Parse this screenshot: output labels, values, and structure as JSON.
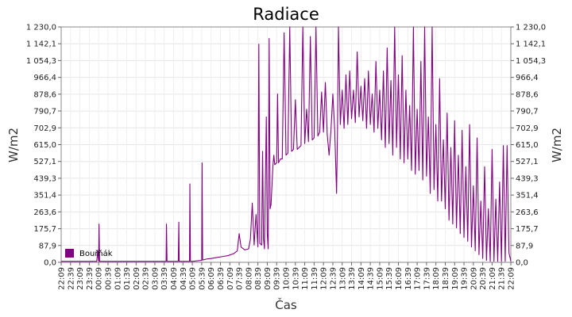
{
  "chart_data": {
    "type": "line",
    "title": "Radiace",
    "xlabel": "Čas",
    "ylabel": "W/m2",
    "ylabel_right": "W/m2",
    "ylim": [
      0,
      1230
    ],
    "y_ticks": [
      {
        "value": 0,
        "label": "0,0"
      },
      {
        "value": 87.9,
        "label": "87,9"
      },
      {
        "value": 175.7,
        "label": "175,7"
      },
      {
        "value": 263.6,
        "label": "263,6"
      },
      {
        "value": 351.4,
        "label": "351,4"
      },
      {
        "value": 439.3,
        "label": "439,3"
      },
      {
        "value": 527.1,
        "label": "527,1"
      },
      {
        "value": 615.0,
        "label": "615,0"
      },
      {
        "value": 702.9,
        "label": "702,9"
      },
      {
        "value": 790.7,
        "label": "790,7"
      },
      {
        "value": 878.6,
        "label": "878,6"
      },
      {
        "value": 966.4,
        "label": "966,4"
      },
      {
        "value": 1054.3,
        "label": "1 054,3"
      },
      {
        "value": 1142.1,
        "label": "1 142,1"
      },
      {
        "value": 1230.0,
        "label": "1 230,0"
      }
    ],
    "x_range_hours": [
      0,
      24
    ],
    "x_ticks": [
      {
        "value": 0.0,
        "label": "22:09"
      },
      {
        "value": 0.5,
        "label": "22:39"
      },
      {
        "value": 1.0,
        "label": "23:09"
      },
      {
        "value": 1.5,
        "label": "23:39"
      },
      {
        "value": 2.0,
        "label": "00:09"
      },
      {
        "value": 2.5,
        "label": "00:39"
      },
      {
        "value": 3.0,
        "label": "01:09"
      },
      {
        "value": 3.5,
        "label": "01:39"
      },
      {
        "value": 4.0,
        "label": "02:09"
      },
      {
        "value": 4.5,
        "label": "02:39"
      },
      {
        "value": 5.0,
        "label": "03:09"
      },
      {
        "value": 5.5,
        "label": "03:39"
      },
      {
        "value": 6.0,
        "label": "04:09"
      },
      {
        "value": 6.5,
        "label": "04:39"
      },
      {
        "value": 7.0,
        "label": "05:09"
      },
      {
        "value": 7.5,
        "label": "05:39"
      },
      {
        "value": 8.0,
        "label": "06:09"
      },
      {
        "value": 8.5,
        "label": "06:39"
      },
      {
        "value": 9.0,
        "label": "07:09"
      },
      {
        "value": 9.5,
        "label": "07:39"
      },
      {
        "value": 10.0,
        "label": "08:09"
      },
      {
        "value": 10.5,
        "label": "08:39"
      },
      {
        "value": 11.0,
        "label": "09:09"
      },
      {
        "value": 11.5,
        "label": "09:39"
      },
      {
        "value": 12.0,
        "label": "10:09"
      },
      {
        "value": 12.5,
        "label": "10:39"
      },
      {
        "value": 13.0,
        "label": "11:09"
      },
      {
        "value": 13.5,
        "label": "11:39"
      },
      {
        "value": 14.0,
        "label": "12:09"
      },
      {
        "value": 14.5,
        "label": "12:39"
      },
      {
        "value": 15.0,
        "label": "13:09"
      },
      {
        "value": 15.5,
        "label": "13:39"
      },
      {
        "value": 16.0,
        "label": "14:09"
      },
      {
        "value": 16.5,
        "label": "14:39"
      },
      {
        "value": 17.0,
        "label": "15:09"
      },
      {
        "value": 17.5,
        "label": "15:39"
      },
      {
        "value": 18.0,
        "label": "16:09"
      },
      {
        "value": 18.5,
        "label": "16:39"
      },
      {
        "value": 19.0,
        "label": "17:09"
      },
      {
        "value": 19.5,
        "label": "17:39"
      },
      {
        "value": 20.0,
        "label": "18:09"
      },
      {
        "value": 20.5,
        "label": "18:39"
      },
      {
        "value": 21.0,
        "label": "19:09"
      },
      {
        "value": 21.5,
        "label": "19:39"
      },
      {
        "value": 22.0,
        "label": "20:09"
      },
      {
        "value": 22.5,
        "label": "20:39"
      },
      {
        "value": 23.0,
        "label": "21:09"
      },
      {
        "value": 23.5,
        "label": "21:39"
      },
      {
        "value": 24.0,
        "label": "22:09"
      }
    ],
    "grid": true,
    "legend_position": "bottom-left",
    "series": [
      {
        "name": "Bouřňák",
        "color": "#800080",
        "points": [
          [
            0.0,
            5
          ],
          [
            1.0,
            5
          ],
          [
            1.9,
            5
          ],
          [
            1.95,
            60
          ],
          [
            2.0,
            5
          ],
          [
            2.02,
            200
          ],
          [
            2.05,
            5
          ],
          [
            3.0,
            5
          ],
          [
            4.0,
            5
          ],
          [
            5.0,
            5
          ],
          [
            5.6,
            5
          ],
          [
            5.62,
            200
          ],
          [
            5.65,
            5
          ],
          [
            6.0,
            5
          ],
          [
            6.25,
            5
          ],
          [
            6.28,
            210
          ],
          [
            6.3,
            5
          ],
          [
            6.5,
            5
          ],
          [
            6.85,
            5
          ],
          [
            6.87,
            410
          ],
          [
            6.9,
            5
          ],
          [
            7.0,
            5
          ],
          [
            7.3,
            8
          ],
          [
            7.5,
            10
          ],
          [
            7.52,
            520
          ],
          [
            7.55,
            12
          ],
          [
            7.8,
            18
          ],
          [
            8.0,
            20
          ],
          [
            8.3,
            25
          ],
          [
            8.6,
            30
          ],
          [
            8.9,
            35
          ],
          [
            9.2,
            45
          ],
          [
            9.4,
            60
          ],
          [
            9.5,
            150
          ],
          [
            9.6,
            80
          ],
          [
            9.8,
            65
          ],
          [
            10.0,
            70
          ],
          [
            10.1,
            120
          ],
          [
            10.2,
            310
          ],
          [
            10.3,
            90
          ],
          [
            10.4,
            250
          ],
          [
            10.5,
            80
          ],
          [
            10.55,
            1140
          ],
          [
            10.6,
            100
          ],
          [
            10.7,
            90
          ],
          [
            10.75,
            580
          ],
          [
            10.8,
            120
          ],
          [
            10.85,
            70
          ],
          [
            10.95,
            760
          ],
          [
            11.0,
            150
          ],
          [
            11.05,
            70
          ],
          [
            11.1,
            1170
          ],
          [
            11.15,
            280
          ],
          [
            11.2,
            300
          ],
          [
            11.3,
            500
          ],
          [
            11.35,
            560
          ],
          [
            11.4,
            510
          ],
          [
            11.5,
            520
          ],
          [
            11.55,
            880
          ],
          [
            11.6,
            520
          ],
          [
            11.7,
            540
          ],
          [
            11.8,
            540
          ],
          [
            11.9,
            1200
          ],
          [
            12.0,
            560
          ],
          [
            12.1,
            570
          ],
          [
            12.2,
            1230
          ],
          [
            12.3,
            580
          ],
          [
            12.4,
            590
          ],
          [
            12.5,
            850
          ],
          [
            12.6,
            590
          ],
          [
            12.7,
            600
          ],
          [
            12.8,
            610
          ],
          [
            12.9,
            1230
          ],
          [
            13.0,
            620
          ],
          [
            13.1,
            800
          ],
          [
            13.2,
            630
          ],
          [
            13.3,
            1180
          ],
          [
            13.4,
            640
          ],
          [
            13.5,
            650
          ],
          [
            13.6,
            1230
          ],
          [
            13.7,
            660
          ],
          [
            13.8,
            680
          ],
          [
            13.9,
            890
          ],
          [
            14.0,
            680
          ],
          [
            14.1,
            940
          ],
          [
            14.2,
            670
          ],
          [
            14.3,
            560
          ],
          [
            14.4,
            690
          ],
          [
            14.5,
            880
          ],
          [
            14.6,
            690
          ],
          [
            14.7,
            360
          ],
          [
            14.75,
            700
          ],
          [
            14.8,
            1230
          ],
          [
            14.9,
            720
          ],
          [
            15.0,
            900
          ],
          [
            15.1,
            700
          ],
          [
            15.2,
            980
          ],
          [
            15.3,
            720
          ],
          [
            15.4,
            1000
          ],
          [
            15.5,
            750
          ],
          [
            15.6,
            900
          ],
          [
            15.7,
            730
          ],
          [
            15.8,
            1100
          ],
          [
            15.9,
            760
          ],
          [
            16.0,
            920
          ],
          [
            16.1,
            740
          ],
          [
            16.2,
            960
          ],
          [
            16.3,
            700
          ],
          [
            16.4,
            1000
          ],
          [
            16.5,
            720
          ],
          [
            16.6,
            880
          ],
          [
            16.7,
            680
          ],
          [
            16.8,
            1050
          ],
          [
            16.9,
            700
          ],
          [
            17.0,
            900
          ],
          [
            17.1,
            640
          ],
          [
            17.2,
            1000
          ],
          [
            17.3,
            600
          ],
          [
            17.4,
            1120
          ],
          [
            17.5,
            620
          ],
          [
            17.6,
            950
          ],
          [
            17.7,
            560
          ],
          [
            17.8,
            1230
          ],
          [
            17.9,
            600
          ],
          [
            18.0,
            980
          ],
          [
            18.1,
            540
          ],
          [
            18.2,
            1080
          ],
          [
            18.3,
            520
          ],
          [
            18.4,
            900
          ],
          [
            18.5,
            540
          ],
          [
            18.6,
            820
          ],
          [
            18.7,
            480
          ],
          [
            18.8,
            1230
          ],
          [
            18.9,
            460
          ],
          [
            19.0,
            800
          ],
          [
            19.1,
            480
          ],
          [
            19.2,
            1050
          ],
          [
            19.3,
            430
          ],
          [
            19.4,
            1230
          ],
          [
            19.5,
            450
          ],
          [
            19.6,
            760
          ],
          [
            19.7,
            360
          ],
          [
            19.8,
            1230
          ],
          [
            19.9,
            380
          ],
          [
            20.0,
            720
          ],
          [
            20.1,
            320
          ],
          [
            20.2,
            960
          ],
          [
            20.3,
            320
          ],
          [
            20.4,
            640
          ],
          [
            20.5,
            280
          ],
          [
            20.6,
            780
          ],
          [
            20.7,
            220
          ],
          [
            20.8,
            600
          ],
          [
            20.9,
            200
          ],
          [
            21.0,
            740
          ],
          [
            21.1,
            180
          ],
          [
            21.2,
            560
          ],
          [
            21.3,
            150
          ],
          [
            21.4,
            690
          ],
          [
            21.5,
            130
          ],
          [
            21.6,
            500
          ],
          [
            21.7,
            110
          ],
          [
            21.8,
            720
          ],
          [
            21.9,
            80
          ],
          [
            22.0,
            400
          ],
          [
            22.1,
            60
          ],
          [
            22.2,
            650
          ],
          [
            22.3,
            40
          ],
          [
            22.4,
            320
          ],
          [
            22.5,
            20
          ],
          [
            22.6,
            500
          ],
          [
            22.7,
            10
          ],
          [
            22.8,
            280
          ],
          [
            22.9,
            5
          ],
          [
            23.0,
            590
          ],
          [
            23.1,
            5
          ],
          [
            23.2,
            330
          ],
          [
            23.3,
            5
          ],
          [
            23.4,
            420
          ],
          [
            23.5,
            5
          ],
          [
            23.6,
            610
          ],
          [
            23.7,
            5
          ],
          [
            23.8,
            610
          ],
          [
            23.9,
            50
          ],
          [
            24.0,
            5
          ]
        ]
      }
    ]
  }
}
